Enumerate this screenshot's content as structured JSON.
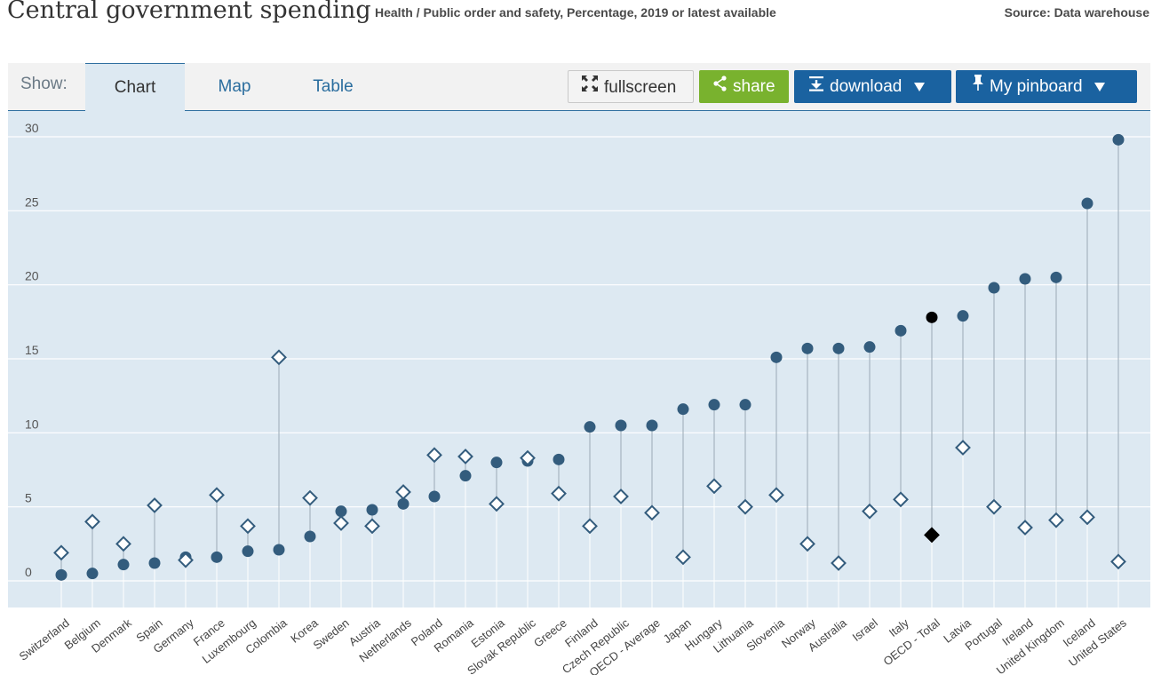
{
  "header": {
    "title": "Central government spending",
    "subtitle": "Health / Public order and safety, Percentage, 2019 or latest available",
    "source": "Source: Data warehouse"
  },
  "toolbar": {
    "show_label": "Show:",
    "tabs": [
      {
        "label": "Chart",
        "active": true
      },
      {
        "label": "Map",
        "active": false
      },
      {
        "label": "Table",
        "active": false
      }
    ],
    "fullscreen_label": "fullscreen",
    "share_label": "share",
    "download_label": "download",
    "pinboard_label": "My pinboard"
  },
  "colors": {
    "plot_background": "#dde9f2",
    "dot": "#335c7d",
    "highlight": "#000000",
    "share_green": "#79b22e",
    "button_blue": "#1a62a0"
  },
  "chart_data": {
    "type": "scatter",
    "style": "dot-plot",
    "ylim": [
      0,
      30
    ],
    "yticks": [
      0,
      5,
      10,
      15,
      20,
      25,
      30
    ],
    "grid": true,
    "legend": "none",
    "highlight_category": "OECD - Total",
    "categories": [
      "Switzerland",
      "Belgium",
      "Denmark",
      "Spain",
      "Germany",
      "France",
      "Luxembourg",
      "Colombia",
      "Korea",
      "Sweden",
      "Austria",
      "Netherlands",
      "Poland",
      "Romania",
      "Estonia",
      "Slovak Republic",
      "Greece",
      "Finland",
      "Czech Republic",
      "OECD - Average",
      "Japan",
      "Hungary",
      "Lithuania",
      "Slovenia",
      "Norway",
      "Australia",
      "Israel",
      "Italy",
      "OECD - Total",
      "Latvia",
      "Portugal",
      "Ireland",
      "United Kingdom",
      "Iceland",
      "United States"
    ],
    "series": [
      {
        "marker": "circle",
        "values": [
          0.4,
          0.5,
          1.1,
          1.2,
          1.6,
          1.6,
          2.0,
          2.1,
          3.0,
          4.7,
          4.8,
          5.2,
          5.7,
          7.1,
          8.0,
          8.1,
          8.2,
          10.4,
          10.5,
          10.5,
          11.6,
          11.9,
          11.9,
          15.1,
          15.7,
          15.7,
          15.8,
          16.9,
          17.8,
          17.9,
          19.8,
          20.4,
          20.5,
          25.5,
          29.8
        ]
      },
      {
        "marker": "diamond",
        "values": [
          1.9,
          4.0,
          2.5,
          5.1,
          1.4,
          5.8,
          3.7,
          15.1,
          5.6,
          3.9,
          3.7,
          6.0,
          8.5,
          8.4,
          5.2,
          8.3,
          5.9,
          3.7,
          5.7,
          4.6,
          1.6,
          6.4,
          5.0,
          5.8,
          2.5,
          1.2,
          4.7,
          5.5,
          3.1,
          9.0,
          5.0,
          3.6,
          4.1,
          4.3,
          1.3
        ]
      }
    ]
  }
}
